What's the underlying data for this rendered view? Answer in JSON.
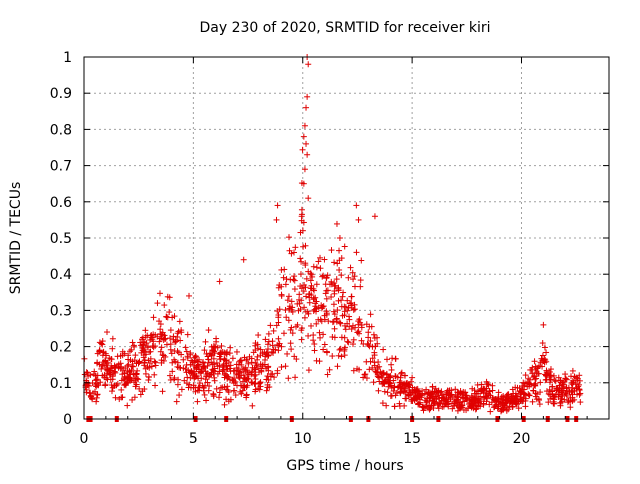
{
  "chart_data": {
    "type": "scatter",
    "title": "Day 230 of 2020, SRMTID for receiver kiri",
    "xlabel": "GPS time / hours",
    "ylabel": "SRMTID / TECUs",
    "xlim": [
      0,
      24
    ],
    "ylim": [
      0,
      1
    ],
    "x_ticks": [
      0,
      5,
      10,
      15,
      20
    ],
    "y_ticks": [
      0,
      0.1,
      0.2,
      0.3,
      0.4,
      0.5,
      0.6,
      0.7,
      0.8,
      0.9,
      1
    ],
    "x_tick_labels": [
      "0",
      "5",
      "10",
      "15",
      "20"
    ],
    "y_tick_labels": [
      "0",
      "0.1",
      "0.2",
      "0.3",
      "0.4",
      "0.5",
      "0.6",
      "0.7",
      "0.8",
      "0.9",
      "1"
    ],
    "grid": true,
    "marker": "plus",
    "color": "#e00000",
    "series": [
      {
        "name": "SRMTID",
        "profile": [
          {
            "x": 0.0,
            "y": 0.11
          },
          {
            "x": 0.2,
            "y": 0.1
          },
          {
            "x": 0.4,
            "y": 0.07
          },
          {
            "x": 0.6,
            "y": 0.1
          },
          {
            "x": 0.8,
            "y": 0.16
          },
          {
            "x": 1.0,
            "y": 0.14
          },
          {
            "x": 1.5,
            "y": 0.12
          },
          {
            "x": 2.0,
            "y": 0.13
          },
          {
            "x": 2.5,
            "y": 0.15
          },
          {
            "x": 3.0,
            "y": 0.18
          },
          {
            "x": 3.5,
            "y": 0.21
          },
          {
            "x": 4.0,
            "y": 0.22
          },
          {
            "x": 4.5,
            "y": 0.16
          },
          {
            "x": 5.0,
            "y": 0.14
          },
          {
            "x": 5.5,
            "y": 0.13
          },
          {
            "x": 6.0,
            "y": 0.17
          },
          {
            "x": 6.5,
            "y": 0.12
          },
          {
            "x": 7.0,
            "y": 0.11
          },
          {
            "x": 7.5,
            "y": 0.12
          },
          {
            "x": 8.0,
            "y": 0.14
          },
          {
            "x": 8.5,
            "y": 0.18
          },
          {
            "x": 9.0,
            "y": 0.28
          },
          {
            "x": 9.5,
            "y": 0.32
          },
          {
            "x": 9.8,
            "y": 0.36
          },
          {
            "x": 10.0,
            "y": 0.45
          },
          {
            "x": 10.5,
            "y": 0.3
          },
          {
            "x": 11.0,
            "y": 0.32
          },
          {
            "x": 11.5,
            "y": 0.34
          },
          {
            "x": 12.0,
            "y": 0.3
          },
          {
            "x": 12.5,
            "y": 0.28
          },
          {
            "x": 13.0,
            "y": 0.2
          },
          {
            "x": 13.5,
            "y": 0.14
          },
          {
            "x": 14.0,
            "y": 0.11
          },
          {
            "x": 14.5,
            "y": 0.09
          },
          {
            "x": 15.0,
            "y": 0.07
          },
          {
            "x": 15.5,
            "y": 0.05
          },
          {
            "x": 16.0,
            "y": 0.05
          },
          {
            "x": 16.5,
            "y": 0.05
          },
          {
            "x": 17.0,
            "y": 0.05
          },
          {
            "x": 17.5,
            "y": 0.05
          },
          {
            "x": 18.0,
            "y": 0.06
          },
          {
            "x": 18.5,
            "y": 0.07
          },
          {
            "x": 19.0,
            "y": 0.04
          },
          {
            "x": 19.5,
            "y": 0.05
          },
          {
            "x": 20.0,
            "y": 0.07
          },
          {
            "x": 20.5,
            "y": 0.1
          },
          {
            "x": 21.0,
            "y": 0.15
          },
          {
            "x": 21.5,
            "y": 0.07
          },
          {
            "x": 22.0,
            "y": 0.08
          },
          {
            "x": 22.5,
            "y": 0.08
          },
          {
            "x": 22.7,
            "y": 0.08
          }
        ],
        "peaks": [
          {
            "x": 10.2,
            "y": 1.0
          },
          {
            "x": 10.25,
            "y": 0.98
          },
          {
            "x": 10.2,
            "y": 0.89
          },
          {
            "x": 10.15,
            "y": 0.86
          },
          {
            "x": 10.1,
            "y": 0.81
          },
          {
            "x": 10.05,
            "y": 0.78
          },
          {
            "x": 10.15,
            "y": 0.76
          },
          {
            "x": 10.2,
            "y": 0.73
          },
          {
            "x": 10.1,
            "y": 0.69
          },
          {
            "x": 10.05,
            "y": 0.65
          },
          {
            "x": 10.25,
            "y": 0.61
          },
          {
            "x": 9.95,
            "y": 0.56
          },
          {
            "x": 8.85,
            "y": 0.59
          },
          {
            "x": 8.8,
            "y": 0.55
          },
          {
            "x": 12.45,
            "y": 0.59
          },
          {
            "x": 12.55,
            "y": 0.55
          },
          {
            "x": 13.3,
            "y": 0.56
          },
          {
            "x": 7.3,
            "y": 0.44
          },
          {
            "x": 4.8,
            "y": 0.34
          },
          {
            "x": 6.2,
            "y": 0.38
          },
          {
            "x": 21.0,
            "y": 0.26
          },
          {
            "x": 11.7,
            "y": 0.5
          },
          {
            "x": 9.6,
            "y": 0.46
          }
        ],
        "zero_points_x": [
          0.2,
          0.3,
          1.5,
          5.1,
          6.5,
          9.5,
          12.2,
          13.0,
          15.0,
          16.2,
          18.9,
          20.1,
          21.2,
          22.1,
          22.5
        ]
      }
    ]
  }
}
